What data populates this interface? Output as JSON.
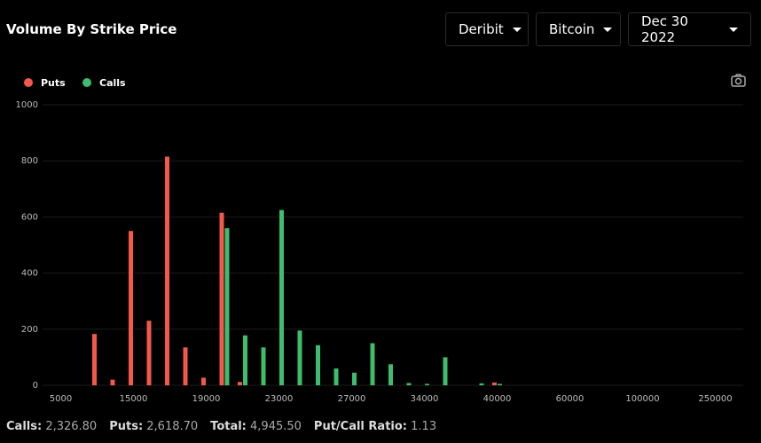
{
  "title": "Volume By Strike Price",
  "controls": [
    "Deribit",
    "Bitcoin",
    "Dec 30 2022"
  ],
  "stats": [
    {
      "label": "Calls:",
      "value": "2,326.80"
    },
    {
      "label": "Puts:",
      "value": "2,618.70"
    },
    {
      "label": "Total:",
      "value": "4,945.50"
    },
    {
      "label": "Put/Call Ratio:",
      "value": "1.13"
    }
  ],
  "chart_data": {
    "type": "bar",
    "categories": [
      "5000",
      null,
      null,
      null,
      "15000",
      null,
      null,
      null,
      "19000",
      null,
      null,
      null,
      "23000",
      null,
      null,
      null,
      "27000",
      null,
      null,
      null,
      "34000",
      null,
      null,
      null,
      "40000",
      null,
      null,
      null,
      "60000",
      null,
      null,
      null,
      "100000",
      null,
      null,
      null,
      "250000"
    ],
    "series": [
      {
        "name": "Puts",
        "color": "#f4584a",
        "values": [
          0,
          0,
          183,
          20,
          550,
          230,
          815,
          135,
          27,
          615,
          12,
          0,
          0,
          0,
          0,
          0,
          0,
          0,
          0,
          0,
          0,
          0,
          0,
          0,
          10,
          0,
          0,
          0,
          0,
          0,
          0,
          0,
          0,
          0,
          0,
          0,
          0
        ]
      },
      {
        "name": "Calls",
        "color": "#3dbd6d",
        "values": [
          0,
          0,
          0,
          0,
          0,
          0,
          0,
          0,
          0,
          560,
          178,
          135,
          625,
          195,
          143,
          60,
          45,
          150,
          75,
          8,
          5,
          100,
          0,
          7,
          5,
          0,
          0,
          0,
          0,
          0,
          0,
          0,
          0,
          0,
          0,
          0,
          0
        ]
      }
    ],
    "ylim": [
      0,
      1000
    ],
    "yticks": [
      0,
      200,
      400,
      600,
      800,
      1000
    ],
    "grid": true
  }
}
